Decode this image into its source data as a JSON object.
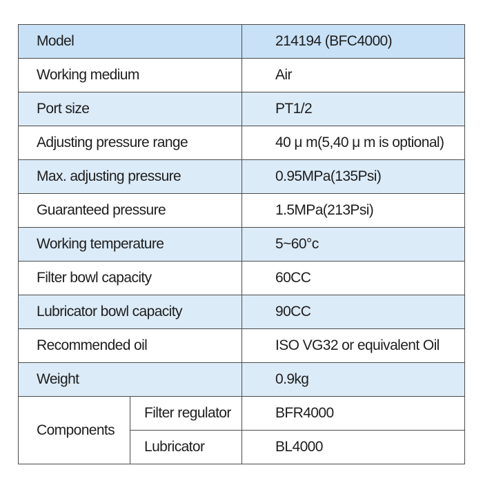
{
  "table": {
    "rows": [
      [
        "Model",
        "214194 (BFC4000)"
      ],
      [
        "Working  medium",
        "Air"
      ],
      [
        "Port  size",
        "PT1/2"
      ],
      [
        "Adjusting  pressure  range",
        "40 μ m(5,40 μ m is optional)"
      ],
      [
        "Max. adjusting  pressure",
        "0.95MPa(135Psi)"
      ],
      [
        "Guaranteed pressure",
        "1.5MPa(213Psi)"
      ],
      [
        "Working temperature",
        "5~60°c"
      ],
      [
        "Filter bowl capacity",
        "60CC"
      ],
      [
        "Lubricator bowl capacity",
        "90CC"
      ],
      [
        "Recommended oil",
        "ISO VG32 or equivalent Oil"
      ],
      [
        "Weight",
        "0.9kg"
      ]
    ],
    "components": {
      "label": "Components",
      "items": [
        [
          "Filter regulator",
          "BFR4000"
        ],
        [
          "Lubricator",
          "BL4000"
        ]
      ]
    }
  }
}
